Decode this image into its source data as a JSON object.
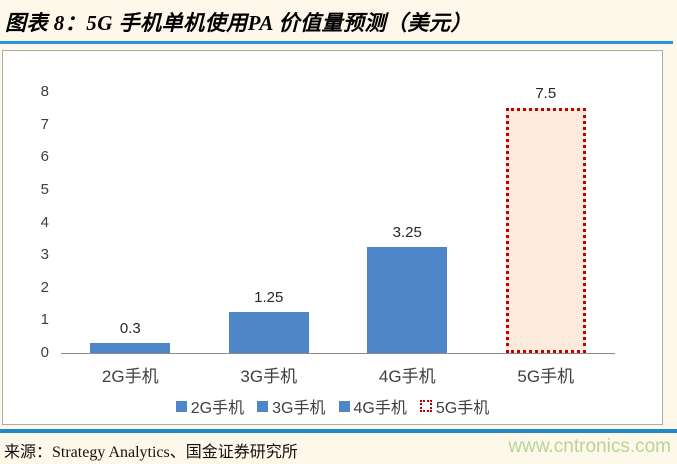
{
  "header": {
    "title": "图表 8：5G 手机单机使用PA 价值量预测（美元）"
  },
  "chart_data": {
    "type": "bar",
    "title": "5G 手机单机使用PA 价值量预测（美元）",
    "categories": [
      "2G手机",
      "3G手机",
      "4G手机",
      "5G手机"
    ],
    "values": [
      0.3,
      1.25,
      3.25,
      7.5
    ],
    "data_labels": [
      "0.3",
      "1.25",
      "3.25",
      "7.5"
    ],
    "xlabel": "",
    "ylabel": "",
    "ylim": [
      0,
      8
    ],
    "ytick_step": 1,
    "grid": false,
    "legend_position": "bottom",
    "legend": [
      "2G手机",
      "3G手机",
      "4G手机",
      "5G手机"
    ],
    "bar_styles": [
      {
        "fill": "#4F86C8"
      },
      {
        "fill": "#4F86C8"
      },
      {
        "fill": "#4F86C8"
      },
      {
        "fill": "#FCEADD",
        "border": "#C00000",
        "dotted": true
      }
    ]
  },
  "footer": {
    "source": "来源：Strategy Analytics、国金证券研究所",
    "watermark": "www.cntronics.com"
  },
  "colors": {
    "bar_blue": "#4F86C8",
    "forecast_fill": "#FCEADD",
    "forecast_border_red": "#C00000",
    "rule_blue_top": "#2A97D4",
    "rule_blue_bottom": "#2189C9",
    "watermark_green": "#B5D697",
    "page_background": "#FDF8EA"
  }
}
